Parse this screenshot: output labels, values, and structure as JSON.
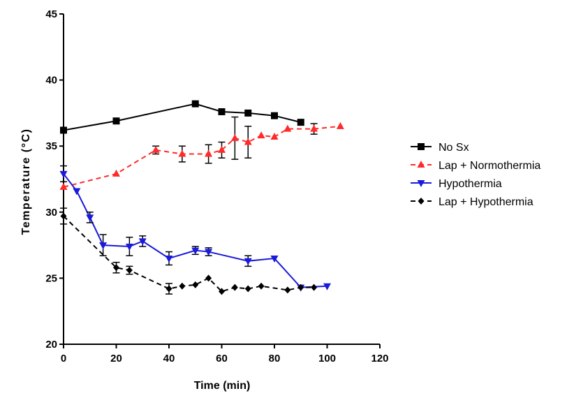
{
  "chart_data": {
    "type": "line",
    "xlabel": "Time (min)",
    "ylabel": "Temperature (°C)",
    "xlim": [
      0,
      120
    ],
    "ylim": [
      20,
      45
    ],
    "x_ticks": [
      0,
      20,
      40,
      60,
      80,
      100,
      120
    ],
    "y_ticks": [
      20,
      25,
      30,
      35,
      40,
      45
    ],
    "grid": false,
    "legend_position": "right",
    "series": [
      {
        "name": "No Sx",
        "color": "#000000",
        "marker": "square",
        "line_style": "solid",
        "points": [
          {
            "x": 0,
            "y": 36.2
          },
          {
            "x": 20,
            "y": 36.9
          },
          {
            "x": 50,
            "y": 38.2
          },
          {
            "x": 60,
            "y": 37.6
          },
          {
            "x": 70,
            "y": 37.5
          },
          {
            "x": 80,
            "y": 37.3
          },
          {
            "x": 90,
            "y": 36.8
          }
        ]
      },
      {
        "name": "Lap + Normothermia",
        "color": "#ff2a2a",
        "marker": "triangle-up",
        "line_style": "dashed",
        "points": [
          {
            "x": 0,
            "y": 31.9
          },
          {
            "x": 20,
            "y": 32.9
          },
          {
            "x": 35,
            "y": 34.7,
            "err": 0.3
          },
          {
            "x": 45,
            "y": 34.4,
            "err": 0.6
          },
          {
            "x": 55,
            "y": 34.4,
            "err": 0.7
          },
          {
            "x": 60,
            "y": 34.7,
            "err": 0.6
          },
          {
            "x": 65,
            "y": 35.6,
            "err": 1.6
          },
          {
            "x": 70,
            "y": 35.3,
            "err": 1.2
          },
          {
            "x": 75,
            "y": 35.8
          },
          {
            "x": 80,
            "y": 35.7
          },
          {
            "x": 85,
            "y": 36.3
          },
          {
            "x": 95,
            "y": 36.3,
            "err": 0.4
          },
          {
            "x": 105,
            "y": 36.5
          }
        ]
      },
      {
        "name": "Hypothermia",
        "color": "#1a1adb",
        "marker": "triangle-down",
        "line_style": "solid",
        "points": [
          {
            "x": 0,
            "y": 32.9,
            "err": 0.6
          },
          {
            "x": 5,
            "y": 31.6
          },
          {
            "x": 10,
            "y": 29.6,
            "err": 0.4
          },
          {
            "x": 15,
            "y": 27.5,
            "err": 0.8
          },
          {
            "x": 25,
            "y": 27.4,
            "err": 0.7
          },
          {
            "x": 30,
            "y": 27.8,
            "err": 0.4
          },
          {
            "x": 40,
            "y": 26.5,
            "err": 0.5
          },
          {
            "x": 50,
            "y": 27.1,
            "err": 0.3
          },
          {
            "x": 55,
            "y": 27.0,
            "err": 0.3
          },
          {
            "x": 70,
            "y": 26.3,
            "err": 0.4
          },
          {
            "x": 80,
            "y": 26.5
          },
          {
            "x": 90,
            "y": 24.3
          },
          {
            "x": 100,
            "y": 24.4
          }
        ]
      },
      {
        "name": "Lap + Hypothermia",
        "color": "#000000",
        "marker": "diamond",
        "line_style": "dashed",
        "points": [
          {
            "x": 0,
            "y": 29.7,
            "err": 0.6
          },
          {
            "x": 20,
            "y": 25.8,
            "err": 0.4
          },
          {
            "x": 25,
            "y": 25.6,
            "err": 0.3
          },
          {
            "x": 40,
            "y": 24.2,
            "err": 0.4
          },
          {
            "x": 45,
            "y": 24.4
          },
          {
            "x": 50,
            "y": 24.5
          },
          {
            "x": 55,
            "y": 25.0
          },
          {
            "x": 60,
            "y": 24.0
          },
          {
            "x": 65,
            "y": 24.3
          },
          {
            "x": 70,
            "y": 24.2
          },
          {
            "x": 75,
            "y": 24.4
          },
          {
            "x": 85,
            "y": 24.1
          },
          {
            "x": 90,
            "y": 24.3
          },
          {
            "x": 95,
            "y": 24.3
          }
        ]
      }
    ]
  }
}
